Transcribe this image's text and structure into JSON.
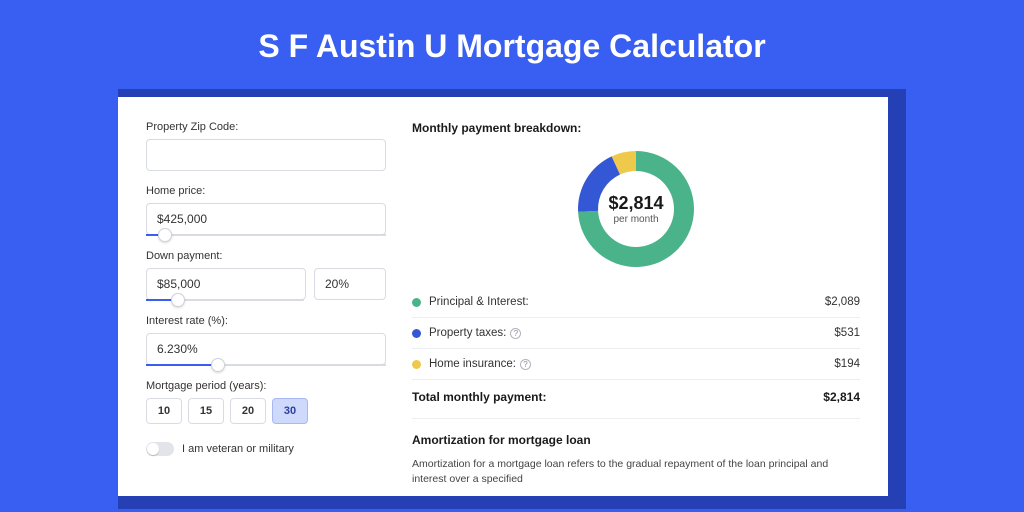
{
  "page": {
    "title": "S F Austin U Mortgage Calculator",
    "colors": {
      "page_bg": "#385ff2",
      "shadow_bar": "#2540b5",
      "card_bg": "#ffffff",
      "accent": "#385ff2"
    }
  },
  "form": {
    "zip": {
      "label": "Property Zip Code:",
      "value": ""
    },
    "home_price": {
      "label": "Home price:",
      "value": "$425,000",
      "slider_pct": 8
    },
    "down_payment": {
      "label": "Down payment:",
      "amount": "$85,000",
      "pct": "20%",
      "slider_pct": 20
    },
    "interest_rate": {
      "label": "Interest rate (%):",
      "value": "6.230%",
      "slider_pct": 30
    },
    "period": {
      "label": "Mortgage period (years):",
      "options": [
        "10",
        "15",
        "20",
        "30"
      ],
      "active": "30"
    },
    "veteran": {
      "label": "I am veteran or military",
      "on": false
    }
  },
  "breakdown": {
    "title": "Monthly payment breakdown:",
    "donut": {
      "amount": "$2,814",
      "sub": "per month",
      "segments": [
        {
          "label": "Principal & Interest",
          "color": "#4bb38a",
          "value": 2089
        },
        {
          "label": "Property taxes",
          "color": "#3457d5",
          "value": 531
        },
        {
          "label": "Home insurance",
          "color": "#efc94c",
          "value": 194
        }
      ]
    },
    "rows": [
      {
        "dot": "#4bb38a",
        "label": "Principal & Interest:",
        "info": false,
        "value": "$2,089"
      },
      {
        "dot": "#3457d5",
        "label": "Property taxes:",
        "info": true,
        "value": "$531"
      },
      {
        "dot": "#efc94c",
        "label": "Home insurance:",
        "info": true,
        "value": "$194"
      }
    ],
    "total": {
      "label": "Total monthly payment:",
      "value": "$2,814"
    }
  },
  "amortization": {
    "title": "Amortization for mortgage loan",
    "text": "Amortization for a mortgage loan refers to the gradual repayment of the loan principal and interest over a specified"
  }
}
